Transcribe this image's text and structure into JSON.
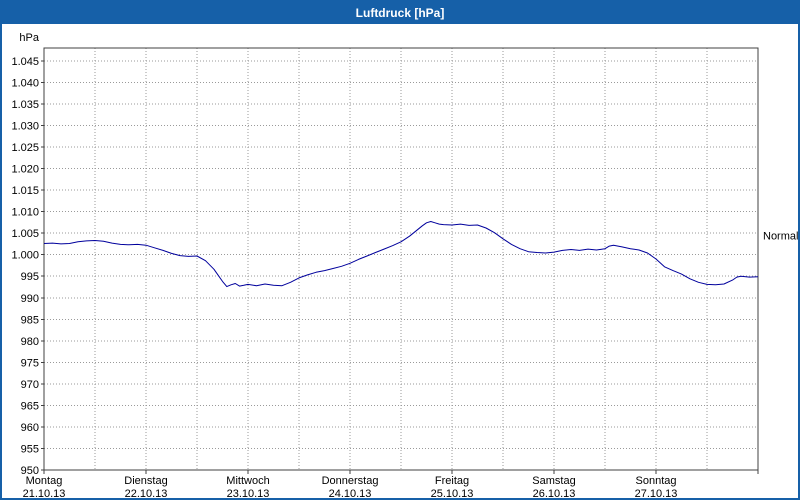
{
  "window": {
    "title": "Luftdruck [hPa]"
  },
  "colors": {
    "titlebar_bg": "#1660a8",
    "titlebar_text": "#ffffff",
    "window_border": "#1660a8",
    "plot_bg": "#ffffff",
    "grid": "#9a9a9a",
    "frame": "#404040",
    "text": "#000000",
    "line": "#00009c"
  },
  "chart_data": {
    "type": "line",
    "title": "Luftdruck [hPa]",
    "y_unit_label": "hPa",
    "normal": {
      "label": "Normal",
      "value": 1004.5
    },
    "ylim": [
      950,
      1048
    ],
    "yticks": {
      "min": 950,
      "max": 1045,
      "step": 5
    },
    "x_hours": [
      0,
      168
    ],
    "x_grid_step_hours": 12,
    "x_day_tick_hours": 24,
    "grid": true,
    "legend": "none",
    "days": [
      {
        "name": "Montag",
        "date": "21.10.13"
      },
      {
        "name": "Dienstag",
        "date": "22.10.13"
      },
      {
        "name": "Mittwoch",
        "date": "23.10.13"
      },
      {
        "name": "Donnerstag",
        "date": "24.10.13"
      },
      {
        "name": "Freitag",
        "date": "25.10.13"
      },
      {
        "name": "Samstag",
        "date": "26.10.13"
      },
      {
        "name": "Sonntag",
        "date": "27.10.13"
      }
    ],
    "series": [
      {
        "name": "Luftdruck",
        "color": "#00009c",
        "points": [
          [
            0,
            1002.6
          ],
          [
            2,
            1002.7
          ],
          [
            4,
            1002.5
          ],
          [
            6,
            1002.6
          ],
          [
            8,
            1003.0
          ],
          [
            10,
            1003.2
          ],
          [
            12,
            1003.3
          ],
          [
            14,
            1003.1
          ],
          [
            16,
            1002.7
          ],
          [
            18,
            1002.4
          ],
          [
            20,
            1002.3
          ],
          [
            22,
            1002.4
          ],
          [
            24,
            1002.2
          ],
          [
            26,
            1001.6
          ],
          [
            28,
            1001.0
          ],
          [
            30,
            1000.3
          ],
          [
            32,
            999.8
          ],
          [
            34,
            999.6
          ],
          [
            36,
            999.7
          ],
          [
            38,
            998.6
          ],
          [
            40,
            996.6
          ],
          [
            41,
            995.2
          ],
          [
            42,
            993.8
          ],
          [
            43,
            992.6
          ],
          [
            44,
            993.0
          ],
          [
            45,
            993.3
          ],
          [
            46,
            992.7
          ],
          [
            47,
            992.9
          ],
          [
            48,
            993.1
          ],
          [
            50,
            992.8
          ],
          [
            52,
            993.2
          ],
          [
            54,
            992.9
          ],
          [
            56,
            992.8
          ],
          [
            58,
            993.6
          ],
          [
            60,
            994.6
          ],
          [
            62,
            995.3
          ],
          [
            64,
            995.9
          ],
          [
            66,
            996.3
          ],
          [
            68,
            996.8
          ],
          [
            70,
            997.3
          ],
          [
            72,
            998.0
          ],
          [
            74,
            998.9
          ],
          [
            76,
            999.7
          ],
          [
            78,
            1000.5
          ],
          [
            80,
            1001.3
          ],
          [
            82,
            1002.1
          ],
          [
            84,
            1003.0
          ],
          [
            86,
            1004.3
          ],
          [
            88,
            1005.9
          ],
          [
            89,
            1006.7
          ],
          [
            90,
            1007.4
          ],
          [
            91,
            1007.7
          ],
          [
            92,
            1007.4
          ],
          [
            93,
            1007.1
          ],
          [
            94,
            1007.0
          ],
          [
            96,
            1006.9
          ],
          [
            98,
            1007.1
          ],
          [
            100,
            1006.8
          ],
          [
            102,
            1006.9
          ],
          [
            104,
            1006.2
          ],
          [
            106,
            1005.1
          ],
          [
            108,
            1003.7
          ],
          [
            110,
            1002.4
          ],
          [
            112,
            1001.4
          ],
          [
            114,
            1000.7
          ],
          [
            116,
            1000.5
          ],
          [
            118,
            1000.4
          ],
          [
            120,
            1000.6
          ],
          [
            122,
            1001.0
          ],
          [
            124,
            1001.2
          ],
          [
            126,
            1001.0
          ],
          [
            128,
            1001.3
          ],
          [
            130,
            1001.1
          ],
          [
            132,
            1001.4
          ],
          [
            133,
            1002.0
          ],
          [
            134,
            1002.2
          ],
          [
            136,
            1001.8
          ],
          [
            138,
            1001.4
          ],
          [
            140,
            1001.1
          ],
          [
            142,
            1000.4
          ],
          [
            144,
            999.0
          ],
          [
            146,
            997.2
          ],
          [
            148,
            996.3
          ],
          [
            150,
            995.5
          ],
          [
            152,
            994.4
          ],
          [
            154,
            993.6
          ],
          [
            156,
            993.1
          ],
          [
            158,
            993.0
          ],
          [
            160,
            993.2
          ],
          [
            162,
            994.1
          ],
          [
            163,
            994.8
          ],
          [
            164,
            995.0
          ],
          [
            166,
            994.8
          ],
          [
            168,
            994.9
          ]
        ]
      }
    ]
  }
}
